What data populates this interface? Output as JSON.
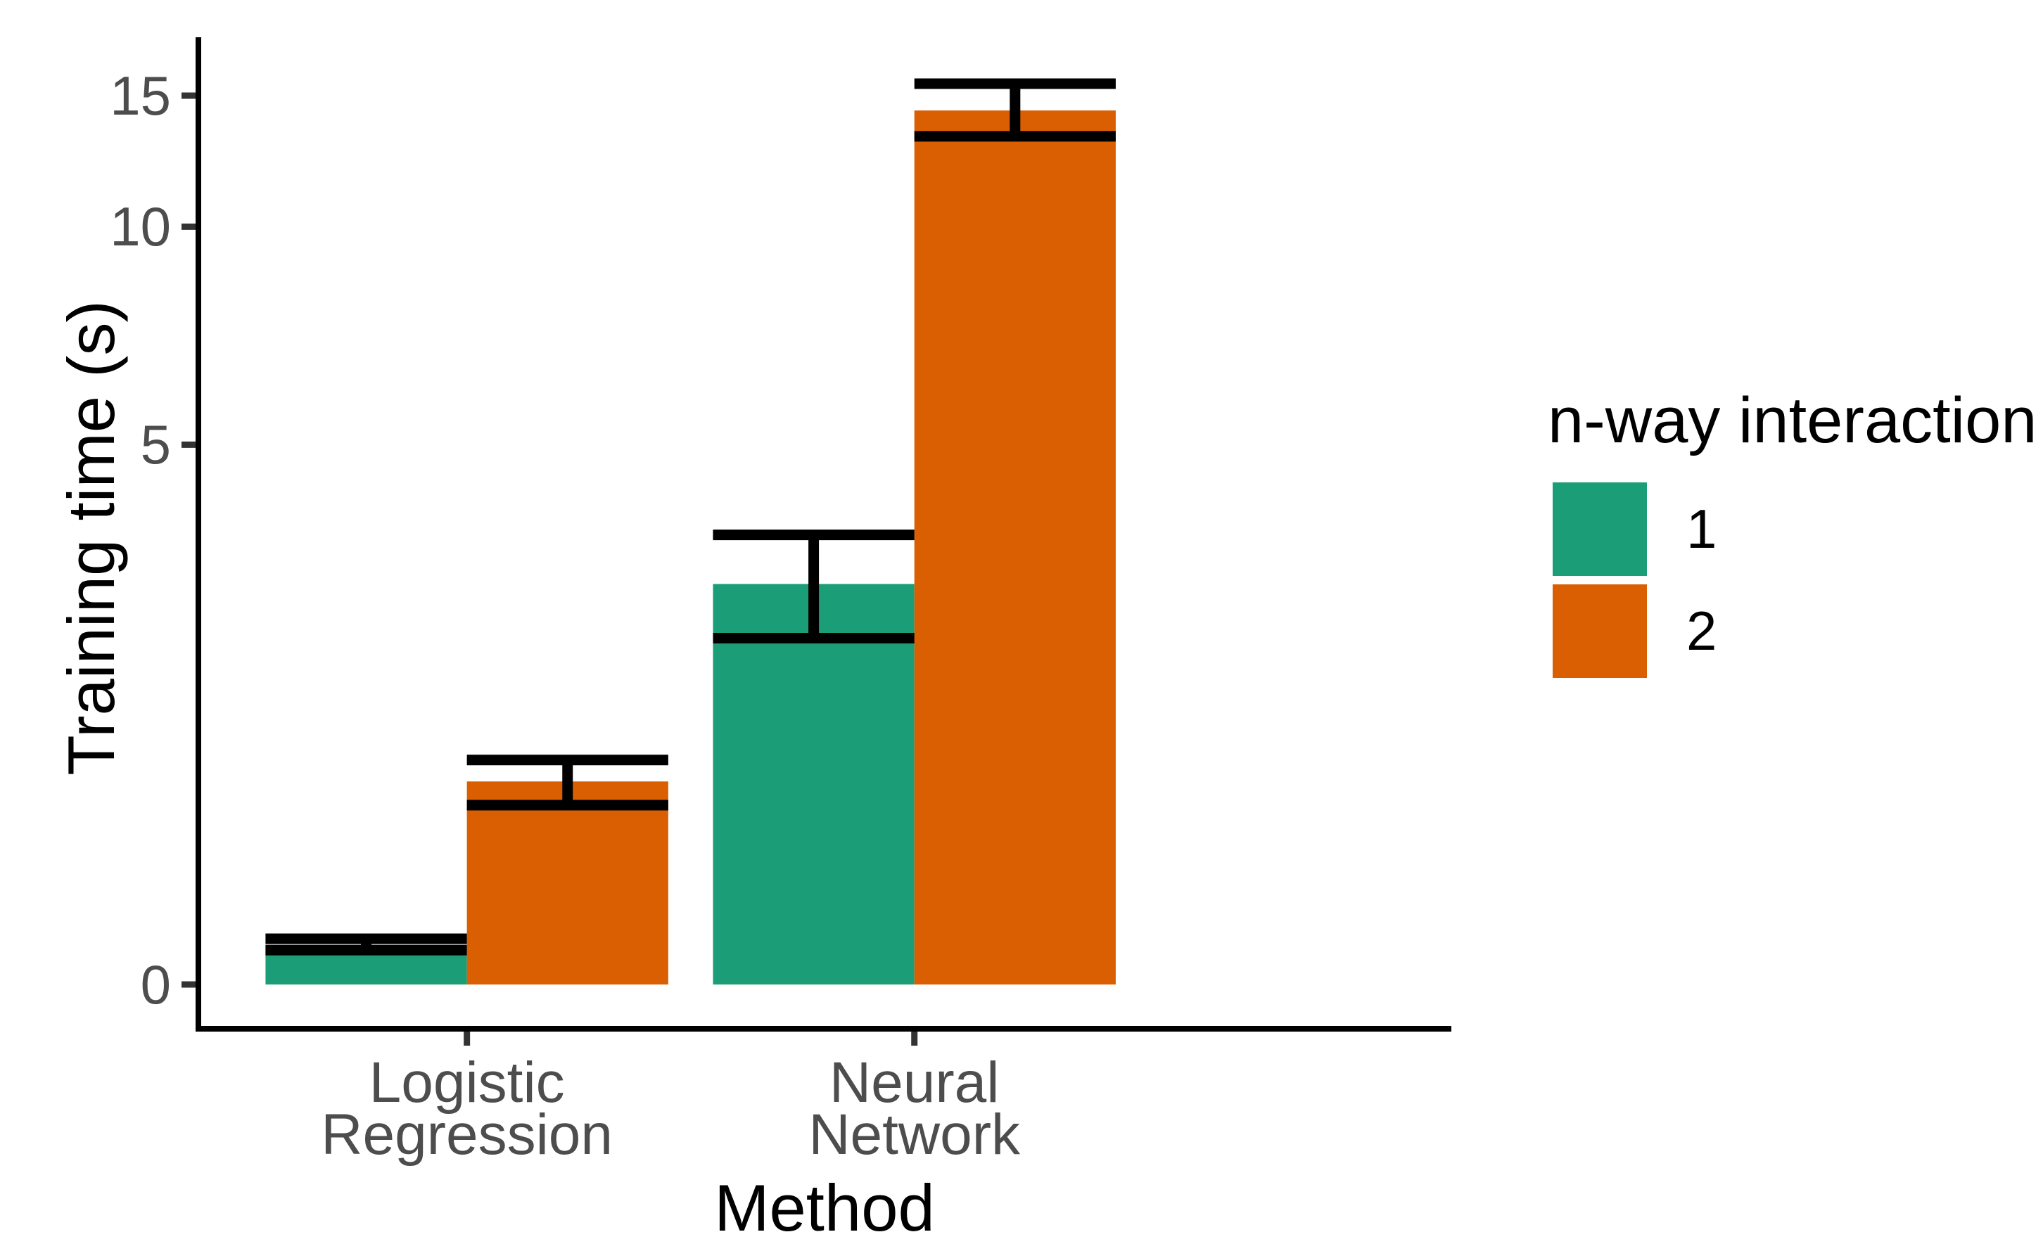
{
  "chart_data": {
    "type": "bar",
    "subtype": "grouped-dodged-with-errorbars",
    "title": "",
    "xlabel": "Method",
    "ylabel": "Training time (s)",
    "categories": [
      "Logistic Regression",
      "Neural Network"
    ],
    "category_label_lines": [
      [
        "Logistic",
        "Regression"
      ],
      [
        "Neural",
        "Network"
      ]
    ],
    "series": [
      {
        "name": "1",
        "color": "#1B9E77",
        "values": [
          0.24,
          3.1
        ],
        "error_lower": [
          0.21,
          2.53
        ],
        "error_upper": [
          0.28,
          3.69
        ]
      },
      {
        "name": "2",
        "color": "#D95F02",
        "values": [
          1.32,
          14.33
        ],
        "error_lower": [
          1.15,
          13.23
        ],
        "error_upper": [
          1.48,
          15.56
        ]
      }
    ],
    "y_ticks": [
      0,
      5,
      10,
      15
    ],
    "y_tick_labels": [
      "0",
      "5",
      "10",
      "15"
    ],
    "ylim": [
      0,
      17.9
    ],
    "y_scale": "pseudo-log asinh(y/2)",
    "grid": false,
    "legend": {
      "title": "n-way interaction",
      "position": "right",
      "entries": [
        {
          "label": "1",
          "color": "#1B9E77"
        },
        {
          "label": "2",
          "color": "#D95F02"
        }
      ]
    },
    "colors": {
      "background": "#ffffff",
      "axis_line": "#000000",
      "tick_mark": "#333333",
      "tick_label_text": "#4D4D4D",
      "axis_title_text": "#000000",
      "error_bar": "#000000"
    }
  }
}
